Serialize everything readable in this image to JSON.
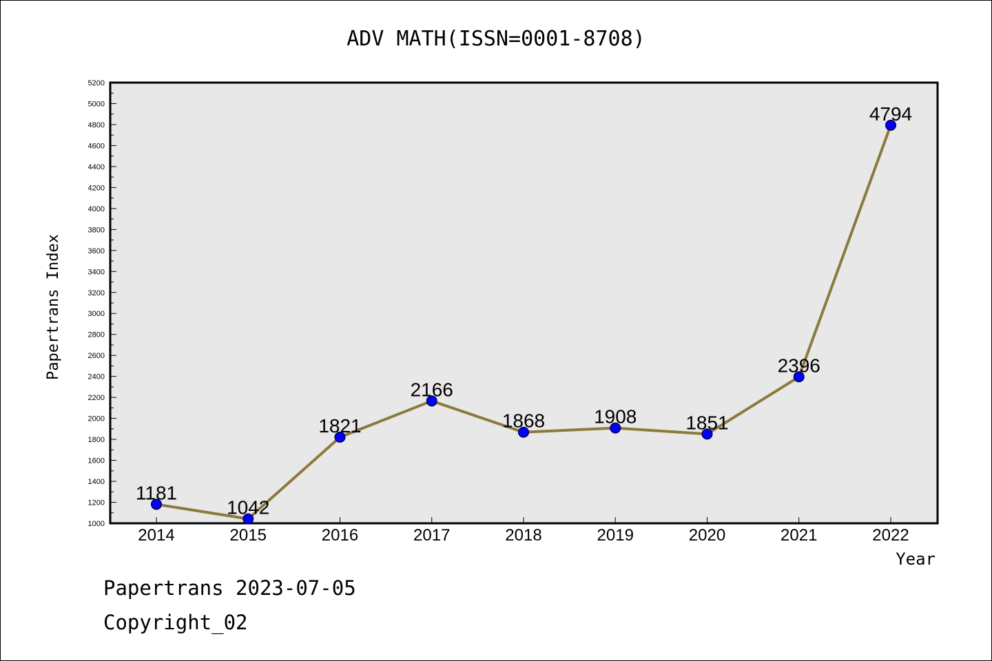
{
  "chart_data": {
    "type": "line",
    "title": "ADV MATH(ISSN=0001-8708)",
    "xlabel": "Year",
    "ylabel": "Papertrans Index",
    "categories": [
      "2014",
      "2015",
      "2016",
      "2017",
      "2018",
      "2019",
      "2020",
      "2021",
      "2022"
    ],
    "values": [
      1181,
      1042,
      1821,
      2166,
      1868,
      1908,
      1851,
      2396,
      4794
    ],
    "data_labels": [
      "1181",
      "1042",
      "1821",
      "2166",
      "1868",
      "1908",
      "1851",
      "2396",
      "4794"
    ],
    "ylim": [
      1000,
      5200
    ],
    "yticks": [
      "1000",
      "1200",
      "1400",
      "1600",
      "1800",
      "2000",
      "2200",
      "2400",
      "2600",
      "2800",
      "3000",
      "3200",
      "3400",
      "3600",
      "3800",
      "4000",
      "4200",
      "4400",
      "4600",
      "4800",
      "5000",
      "5200"
    ],
    "grid": false,
    "line_color": "#8c7a3a",
    "marker_color": "#0000ff",
    "plot_background": "#e8e8e8"
  },
  "footer": {
    "line1": "Papertrans 2023-07-05",
    "line2": "Copyright_02"
  }
}
